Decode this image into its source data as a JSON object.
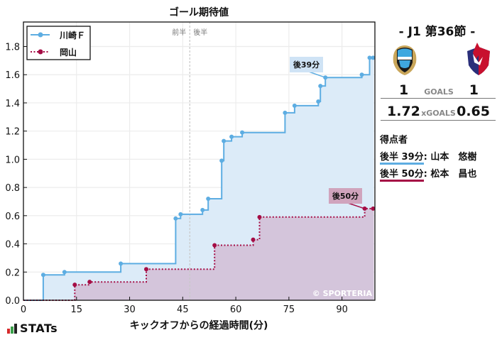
{
  "chart_data": {
    "type": "line",
    "subtype": "step",
    "title": "ゴール期待値",
    "xlabel": "キックオフからの経過時間(分)",
    "ylabel": "",
    "xlim": [
      0,
      99
    ],
    "ylim": [
      0,
      1.98
    ],
    "x_ticks": [
      0,
      15,
      30,
      45,
      60,
      75,
      90
    ],
    "y_ticks": [
      0.0,
      0.2,
      0.4,
      0.6,
      0.8,
      1.0,
      1.2,
      1.4,
      1.6,
      1.8
    ],
    "grid": true,
    "legend_position": "upper left",
    "halftime_line": {
      "x": 47,
      "left_label": "前半",
      "right_label": "後半"
    },
    "watermark": "© SPORTERIA",
    "series": [
      {
        "name": "川崎Ｆ",
        "color": "#5dade2",
        "style": "solid",
        "x": [
          5.6,
          11.6,
          27.5,
          43.0,
          44.4,
          50.6,
          52.2,
          56.0,
          56.6,
          58.8,
          61.8,
          73.9,
          76.6,
          83.3,
          83.9,
          85.3,
          95.6,
          97.8
        ],
        "y": [
          0.18,
          0.2,
          0.26,
          0.58,
          0.61,
          0.64,
          0.72,
          0.99,
          1.13,
          1.16,
          1.19,
          1.33,
          1.38,
          1.41,
          1.52,
          1.58,
          1.6,
          1.72
        ],
        "final": 1.72,
        "goal_annotation": {
          "label": "後39分",
          "x": 85.3,
          "y": 1.58
        }
      },
      {
        "name": "岡山",
        "color": "#a50d45",
        "style": "dotted",
        "x": [
          14.5,
          18.7,
          34.7,
          54.0,
          64.9,
          66.7,
          96.4
        ],
        "y": [
          0.11,
          0.13,
          0.22,
          0.39,
          0.43,
          0.59,
          0.65
        ],
        "final": 0.65,
        "goal_annotation": {
          "label": "後50分",
          "x": 96.4,
          "y": 0.65
        }
      }
    ]
  },
  "match": {
    "title": "-  J1 第36節  -",
    "home": {
      "name": "川崎Ｆ",
      "goals": "1",
      "xgoals": "1.72",
      "color": "#5dade2"
    },
    "away": {
      "name": "岡山",
      "goals": "1",
      "xgoals": "0.65",
      "color": "#a50d45"
    },
    "goals_label": "GOALS",
    "xgoals_label": "xGOALS"
  },
  "scorers": {
    "title": "得点者",
    "items": [
      {
        "time": "後半 39分",
        "name": ": 山本　悠樹",
        "color": "#5dade2"
      },
      {
        "time": "後半 50分",
        "name": ": 松本　昌也",
        "color": "#a50d45"
      }
    ]
  },
  "brand": {
    "label": "STATs"
  }
}
